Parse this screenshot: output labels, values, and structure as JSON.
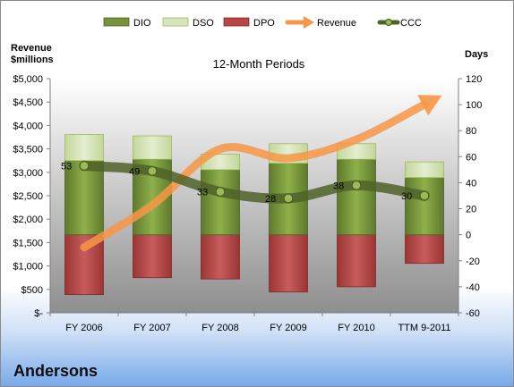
{
  "company": "Andersons",
  "chart_data": {
    "type": "bar",
    "title": "12-Month Periods",
    "categories": [
      "FY 2006",
      "FY 2007",
      "FY 2008",
      "FY 2009",
      "FY 2010",
      "TTM 9-2011"
    ],
    "left_axis": {
      "label_line1": "Revenue",
      "label_line2": "$millions",
      "ylim": [
        0,
        5000
      ],
      "ticks": [
        0,
        500,
        1000,
        1500,
        2000,
        2500,
        3000,
        3500,
        4000,
        4500,
        5000
      ],
      "tick_labels": [
        "$-",
        "$500",
        "$1,000",
        "$1,500",
        "$2,000",
        "$2,500",
        "$3,000",
        "$3,500",
        "$4,000",
        "$4,500",
        "$5,000"
      ]
    },
    "right_axis": {
      "label": "Days",
      "ylim": [
        -60,
        120
      ],
      "ticks": [
        -60,
        -40,
        -20,
        0,
        20,
        40,
        60,
        80,
        100,
        120
      ],
      "tick_labels": [
        "-60",
        "-40",
        "-20",
        "0",
        "20",
        "40",
        "60",
        "80",
        "100",
        "120"
      ]
    },
    "series": [
      {
        "name": "DIO",
        "axis": "right",
        "values": [
          57,
          58,
          50,
          55,
          58,
          44
        ],
        "color": "#77933c"
      },
      {
        "name": "DSO",
        "axis": "right",
        "values": [
          20,
          18,
          12,
          15,
          12,
          12
        ],
        "color": "#d7e4bd"
      },
      {
        "name": "DPO",
        "axis": "right",
        "values": [
          -46,
          -33,
          -34,
          -44,
          -40,
          -22
        ],
        "color": "#b94545"
      },
      {
        "name": "Revenue",
        "axis": "left",
        "type": "line",
        "values": [
          1400,
          2300,
          3500,
          3300,
          3700,
          4450
        ],
        "color": "#f79646"
      },
      {
        "name": "CCC",
        "axis": "right",
        "type": "line",
        "values": [
          53,
          49,
          33,
          28,
          38,
          30
        ],
        "color": "#4f6228"
      }
    ],
    "ccc_labels": [
      "53",
      "49",
      "33",
      "28",
      "38",
      "30"
    ],
    "grid": false,
    "legend_position": "top"
  }
}
